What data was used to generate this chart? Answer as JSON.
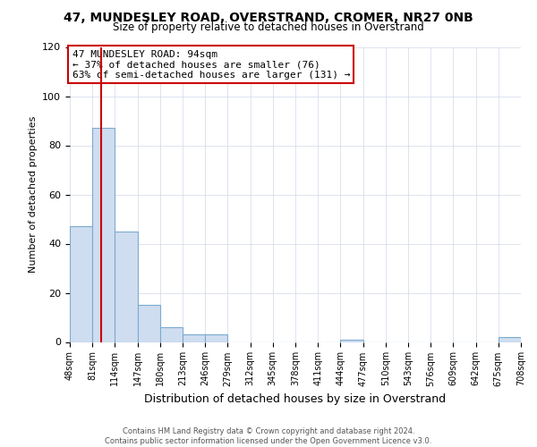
{
  "title1": "47, MUNDESLEY ROAD, OVERSTRAND, CROMER, NR27 0NB",
  "title2": "Size of property relative to detached houses in Overstrand",
  "xlabel": "Distribution of detached houses by size in Overstrand",
  "ylabel": "Number of detached properties",
  "bin_edges": [
    48,
    81,
    114,
    147,
    180,
    213,
    246,
    279,
    312,
    345,
    378,
    411,
    444,
    477,
    510,
    543,
    576,
    609,
    642,
    675,
    708
  ],
  "bar_heights": [
    47,
    87,
    45,
    15,
    6,
    3,
    3,
    0,
    0,
    0,
    0,
    0,
    1,
    0,
    0,
    0,
    0,
    0,
    0,
    2
  ],
  "bar_color": "#cfddf0",
  "bar_edge_color": "#7aabcf",
  "property_line_x": 94,
  "property_line_color": "#cc0000",
  "ylim": [
    0,
    120
  ],
  "yticks": [
    0,
    20,
    40,
    60,
    80,
    100,
    120
  ],
  "annotation_title": "47 MUNDESLEY ROAD: 94sqm",
  "annotation_line1": "← 37% of detached houses are smaller (76)",
  "annotation_line2": "63% of semi-detached houses are larger (131) →",
  "annotation_box_color": "#ffffff",
  "annotation_box_edge_color": "#cc0000",
  "footer_line1": "Contains HM Land Registry data © Crown copyright and database right 2024.",
  "footer_line2": "Contains public sector information licensed under the Open Government Licence v3.0.",
  "background_color": "#ffffff",
  "grid_color": "#d0d8e8"
}
